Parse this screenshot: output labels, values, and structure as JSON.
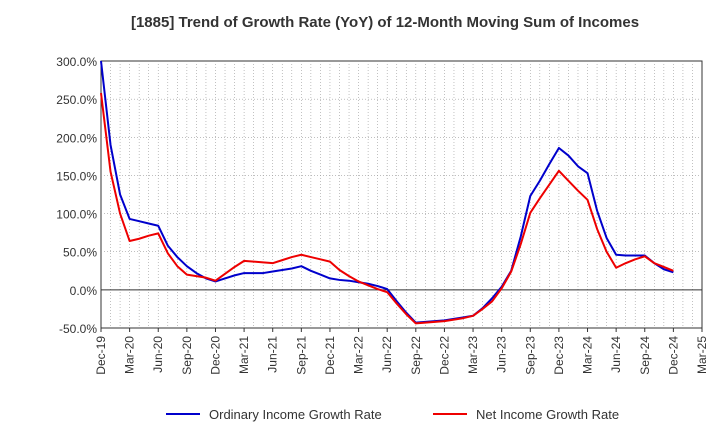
{
  "chart_data": {
    "type": "line",
    "title": "[1885]  Trend of Growth Rate (YoY) of 12-Month Moving Sum of Incomes",
    "xlabel": "",
    "ylabel": "",
    "ylim": [
      -50,
      300
    ],
    "y_ticks": [
      300,
      250,
      200,
      150,
      100,
      50,
      0,
      -50
    ],
    "y_tick_labels": [
      "300.0%",
      "250.0%",
      "200.0%",
      "150.0%",
      "100.0%",
      "50.0%",
      "0.0%",
      "-50.0%"
    ],
    "x_tick_labels": [
      "Dec-19",
      "Mar-20",
      "Jun-20",
      "Sep-20",
      "Dec-20",
      "Mar-21",
      "Jun-21",
      "Sep-21",
      "Dec-21",
      "Mar-22",
      "Jun-22",
      "Sep-22",
      "Dec-22",
      "Mar-23",
      "Jun-23",
      "Sep-23",
      "Dec-23",
      "Mar-24",
      "Jun-24",
      "Sep-24",
      "Dec-24",
      "Mar-25"
    ],
    "grid": true,
    "legend_position": "bottom",
    "series": [
      {
        "name": "Ordinary Income Growth Rate",
        "color": "#0000cc",
        "x": [
          "Dec-19",
          "Jan-20",
          "Feb-20",
          "Mar-20",
          "Apr-20",
          "May-20",
          "Jun-20",
          "Jul-20",
          "Aug-20",
          "Sep-20",
          "Oct-20",
          "Nov-20",
          "Dec-20",
          "Jan-21",
          "Feb-21",
          "Mar-21",
          "Apr-21",
          "May-21",
          "Jun-21",
          "Jul-21",
          "Aug-21",
          "Sep-21",
          "Oct-21",
          "Nov-21",
          "Dec-21",
          "Jan-22",
          "Feb-22",
          "Mar-22",
          "Apr-22",
          "May-22",
          "Jun-22",
          "Jul-22",
          "Aug-22",
          "Sep-22",
          "Oct-22",
          "Nov-22",
          "Dec-22",
          "Jan-23",
          "Feb-23",
          "Mar-23",
          "Apr-23",
          "May-23",
          "Jun-23",
          "Jul-23",
          "Aug-23",
          "Sep-23",
          "Oct-23",
          "Nov-23",
          "Dec-23",
          "Jan-24",
          "Feb-24",
          "Mar-24",
          "Apr-24",
          "May-24",
          "Jun-24",
          "Jul-24",
          "Aug-24",
          "Sep-24",
          "Oct-24",
          "Nov-24",
          "Dec-24"
        ],
        "values": [
          300,
          190,
          125,
          93,
          90,
          87,
          84,
          58,
          43,
          31,
          22,
          15,
          11,
          15,
          19,
          22,
          22,
          22,
          24,
          26,
          28,
          31,
          25,
          20,
          15,
          13,
          12,
          10,
          8,
          5,
          1,
          -15,
          -30,
          -43,
          -42,
          -41,
          -40,
          -38,
          -36,
          -34,
          -24,
          -11,
          4,
          25,
          70,
          123,
          143,
          165,
          186,
          176,
          162,
          153,
          104,
          68,
          46,
          45,
          45,
          45,
          35,
          27,
          23
        ]
      },
      {
        "name": "Net Income Growth Rate",
        "color": "#ee0000",
        "x": [
          "Dec-19",
          "Jan-20",
          "Feb-20",
          "Mar-20",
          "Apr-20",
          "May-20",
          "Jun-20",
          "Jul-20",
          "Aug-20",
          "Sep-20",
          "Oct-20",
          "Nov-20",
          "Dec-20",
          "Jan-21",
          "Feb-21",
          "Mar-21",
          "Apr-21",
          "May-21",
          "Jun-21",
          "Jul-21",
          "Aug-21",
          "Sep-21",
          "Oct-21",
          "Nov-21",
          "Dec-21",
          "Jan-22",
          "Feb-22",
          "Mar-22",
          "Apr-22",
          "May-22",
          "Jun-22",
          "Jul-22",
          "Aug-22",
          "Sep-22",
          "Oct-22",
          "Nov-22",
          "Dec-22",
          "Jan-23",
          "Feb-23",
          "Mar-23",
          "Apr-23",
          "May-23",
          "Jun-23",
          "Jul-23",
          "Aug-23",
          "Sep-23",
          "Oct-23",
          "Nov-23",
          "Dec-23",
          "Jan-24",
          "Feb-24",
          "Mar-24",
          "Apr-24",
          "May-24",
          "Jun-24",
          "Jul-24",
          "Aug-24",
          "Sep-24",
          "Oct-24",
          "Nov-24",
          "Dec-24"
        ],
        "values": [
          258,
          155,
          100,
          64,
          67,
          71,
          74,
          48,
          31,
          20,
          18,
          16,
          12,
          21,
          30,
          38,
          37,
          36,
          35,
          39,
          43,
          46,
          43,
          40,
          37,
          26,
          18,
          11,
          6,
          1,
          -3,
          -18,
          -32,
          -44,
          -43,
          -42,
          -41,
          -39,
          -37,
          -34,
          -25,
          -15,
          2,
          24,
          60,
          101,
          120,
          138,
          156,
          143,
          130,
          118,
          80,
          50,
          29,
          35,
          40,
          44,
          35,
          30,
          25
        ]
      }
    ]
  }
}
